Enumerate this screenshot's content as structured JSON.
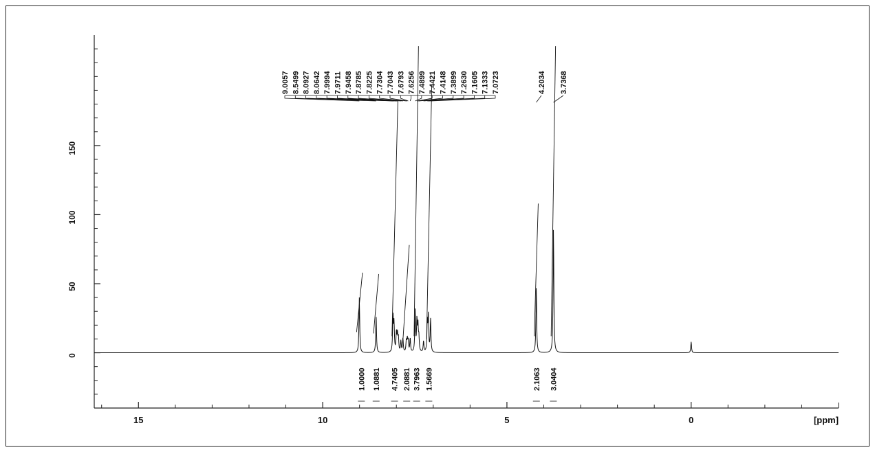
{
  "chart_data": {
    "type": "line",
    "title": "",
    "xlabel": "[ppm]",
    "ylabel": "",
    "xlim": [
      16.2,
      -4.0
    ],
    "ylim": [
      -40,
      230
    ],
    "x_ticks": [
      15,
      10,
      5,
      0
    ],
    "x_tick_labels": [
      "15",
      "10",
      "5",
      "0"
    ],
    "y_ticks": [
      0,
      50,
      100,
      150
    ],
    "y_tick_labels": [
      "0",
      "50",
      "100",
      "150"
    ],
    "grid": false,
    "peaks": [
      {
        "x": 9.0057,
        "y": 40
      },
      {
        "x": 8.5499,
        "y": 27
      },
      {
        "x": 8.0927,
        "y": 27
      },
      {
        "x": 8.0642,
        "y": 20
      },
      {
        "x": 7.9994,
        "y": 14
      },
      {
        "x": 7.9711,
        "y": 12
      },
      {
        "x": 7.9458,
        "y": 10
      },
      {
        "x": 7.8785,
        "y": 8
      },
      {
        "x": 7.8225,
        "y": 10
      },
      {
        "x": 7.7304,
        "y": 8
      },
      {
        "x": 7.7043,
        "y": 9
      },
      {
        "x": 7.6793,
        "y": 8
      },
      {
        "x": 7.6256,
        "y": 10
      },
      {
        "x": 7.4899,
        "y": 30
      },
      {
        "x": 7.4421,
        "y": 22
      },
      {
        "x": 7.4148,
        "y": 18
      },
      {
        "x": 7.3899,
        "y": 10
      },
      {
        "x": 7.263,
        "y": 8
      },
      {
        "x": 7.1605,
        "y": 22
      },
      {
        "x": 7.1333,
        "y": 25
      },
      {
        "x": 7.0723,
        "y": 24
      },
      {
        "x": 4.2034,
        "y": 47
      },
      {
        "x": 3.7368,
        "y": 90
      },
      {
        "x": 0.0,
        "y": 8
      }
    ],
    "peak_labels": [
      "9.0057",
      "8.5499",
      "8.0927",
      "8.0642",
      "7.9994",
      "7.9711",
      "7.9458",
      "7.8785",
      "7.8225",
      "7.7304",
      "7.7043",
      "7.6793",
      "7.6256",
      "7.4899",
      "7.4421",
      "7.4148",
      "7.3899",
      "7.2630",
      "7.1605",
      "7.1333",
      "7.0723"
    ],
    "peak_labels_right": [
      "4.2034",
      "3.7368"
    ],
    "integrations": [
      {
        "x": 8.95,
        "value": "1.0000"
      },
      {
        "x": 8.55,
        "value": "1.0881"
      },
      {
        "x": 8.05,
        "value": "4.7405"
      },
      {
        "x": 7.72,
        "value": "2.0881"
      },
      {
        "x": 7.45,
        "value": "3.7963"
      },
      {
        "x": 7.12,
        "value": "1.5669"
      },
      {
        "x": 4.2,
        "value": "2.1063"
      },
      {
        "x": 3.74,
        "value": "3.0404"
      }
    ]
  }
}
